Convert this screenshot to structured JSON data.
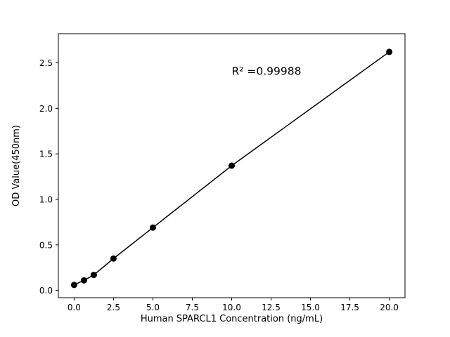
{
  "figure": {
    "background": "#ffffff"
  },
  "chart_data": {
    "type": "scatter",
    "title": "",
    "xlabel": "Human SPARCL1 Concentration (ng/mL)",
    "ylabel": "OD Value(450nm)",
    "x": [
      0,
      0.625,
      1.25,
      2.5,
      5,
      10,
      20
    ],
    "y": [
      0.06,
      0.11,
      0.17,
      0.35,
      0.69,
      1.37,
      2.62
    ],
    "line": true,
    "line_color": "#000000",
    "marker_color": "#000000",
    "marker_radius": 4.5,
    "xlim": [
      -1,
      21
    ],
    "ylim": [
      -0.08,
      2.82
    ],
    "xticks": [
      0.0,
      2.5,
      5.0,
      7.5,
      10.0,
      12.5,
      15.0,
      17.5,
      20.0
    ],
    "xtick_labels": [
      "0.0",
      "2.5",
      "5.0",
      "7.5",
      "10.0",
      "12.5",
      "15.0",
      "17.5",
      "20.0"
    ],
    "yticks": [
      0.0,
      0.5,
      1.0,
      1.5,
      2.0,
      2.5
    ],
    "ytick_labels": [
      "0.0",
      "0.5",
      "1.0",
      "1.5",
      "2.0",
      "2.5"
    ],
    "annotation": {
      "text": "R² =0.99988",
      "x": 10,
      "y": 2.37
    },
    "grid": false,
    "legend_position": "none"
  }
}
